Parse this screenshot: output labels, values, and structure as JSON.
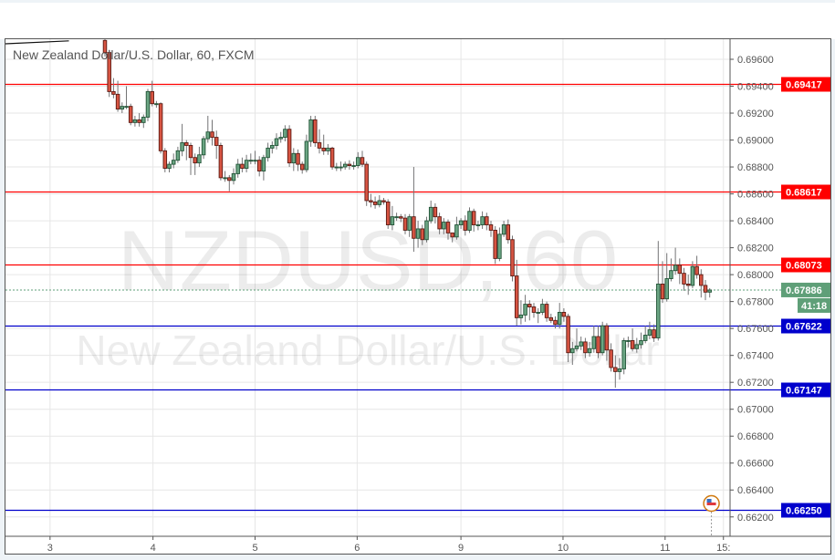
{
  "chart_data": {
    "type": "candlestick",
    "title": "New Zealand Dollar/U.S. Dollar, 60, FXCM",
    "watermark": {
      "symbol_line": "NZDUSD, 60",
      "name_line": "New Zealand Dollar/U.S. Dollar"
    },
    "timeframe_minutes": 60,
    "ylim": [
      0.6615,
      0.6972
    ],
    "y_ticks": [
      "0.69600",
      "0.69400",
      "0.69200",
      "0.69000",
      "0.68800",
      "0.68600",
      "0.68400",
      "0.68200",
      "0.68000",
      "0.67800",
      "0.67600",
      "0.67400",
      "0.67200",
      "0.67000",
      "0.66800",
      "0.66600",
      "0.66400",
      "0.66200"
    ],
    "x_ticks": [
      {
        "label": "3",
        "bar": -12.8
      },
      {
        "label": "4",
        "bar": 11.2
      },
      {
        "label": "5",
        "bar": 35
      },
      {
        "label": "6",
        "bar": 58.8
      },
      {
        "label": "9",
        "bar": 83
      },
      {
        "label": "10",
        "bar": 106.8
      },
      {
        "label": "11",
        "bar": 130.6
      },
      {
        "label": "15:",
        "bar": 144.2
      }
    ],
    "grid": true,
    "colors": {
      "up": "#6ba583",
      "up_border": "#225437",
      "down": "#d75442",
      "down_border": "#5b1a13",
      "wick": "#737375",
      "resistance": "#ff0000",
      "support": "#0000cc",
      "last_price": "#5f9f78"
    },
    "levels": [
      {
        "price": "0.69417",
        "kind": "resistance"
      },
      {
        "price": "0.68617",
        "kind": "resistance"
      },
      {
        "price": "0.68073",
        "kind": "resistance"
      },
      {
        "price": "0.67622",
        "kind": "support"
      },
      {
        "price": "0.67147",
        "kind": "support"
      },
      {
        "price": "0.66250",
        "kind": "support"
      }
    ],
    "last_price": {
      "price": "0.67886",
      "countdown": "41:18"
    },
    "trendline": {
      "from": {
        "bar": -21.6,
        "price": 0.697
      },
      "to": {
        "bar": -8.4,
        "price": 0.6974
      }
    },
    "events": [
      {
        "icon": "us-flag-icon",
        "bar": 141.4
      }
    ],
    "candles": [
      [
        0.6974,
        0.6977,
        0.6962,
        0.6965
      ],
      [
        0.6965,
        0.6967,
        0.6932,
        0.6936
      ],
      [
        0.6936,
        0.6946,
        0.6931,
        0.6934
      ],
      [
        0.6934,
        0.6944,
        0.6921,
        0.6923
      ],
      [
        0.6923,
        0.6928,
        0.692,
        0.6925
      ],
      [
        0.6925,
        0.694,
        0.6923,
        0.6925
      ],
      [
        0.6925,
        0.6927,
        0.6911,
        0.6913
      ],
      [
        0.6913,
        0.6918,
        0.691,
        0.6915
      ],
      [
        0.6915,
        0.692,
        0.691,
        0.6913
      ],
      [
        0.6913,
        0.6919,
        0.6909,
        0.6917
      ],
      [
        0.6917,
        0.6938,
        0.6914,
        0.6936
      ],
      [
        0.6936,
        0.6944,
        0.6925,
        0.6927
      ],
      [
        0.6927,
        0.6929,
        0.6924,
        0.6927
      ],
      [
        0.6927,
        0.6928,
        0.689,
        0.6892
      ],
      [
        0.6892,
        0.6894,
        0.6876,
        0.6879
      ],
      [
        0.6879,
        0.6884,
        0.6876,
        0.6882
      ],
      [
        0.6882,
        0.689,
        0.6879,
        0.6885
      ],
      [
        0.6885,
        0.6895,
        0.6883,
        0.6892
      ],
      [
        0.6892,
        0.6912,
        0.6888,
        0.6898
      ],
      [
        0.6898,
        0.69,
        0.6885,
        0.6896
      ],
      [
        0.6896,
        0.6898,
        0.6874,
        0.6887
      ],
      [
        0.6887,
        0.689,
        0.6874,
        0.6883
      ],
      [
        0.6883,
        0.6895,
        0.688,
        0.6889
      ],
      [
        0.6889,
        0.6903,
        0.6886,
        0.6901
      ],
      [
        0.6901,
        0.6918,
        0.6898,
        0.6906
      ],
      [
        0.6906,
        0.6915,
        0.6896,
        0.6902
      ],
      [
        0.6902,
        0.6907,
        0.6886,
        0.6896
      ],
      [
        0.6896,
        0.6898,
        0.687,
        0.6872
      ],
      [
        0.6872,
        0.6877,
        0.6869,
        0.6872
      ],
      [
        0.6872,
        0.6874,
        0.6862,
        0.687
      ],
      [
        0.687,
        0.6879,
        0.6867,
        0.6875
      ],
      [
        0.6875,
        0.6886,
        0.6872,
        0.6882
      ],
      [
        0.6882,
        0.6887,
        0.6876,
        0.6879
      ],
      [
        0.6879,
        0.6889,
        0.6876,
        0.6885
      ],
      [
        0.6885,
        0.689,
        0.6882,
        0.6885
      ],
      [
        0.6885,
        0.6892,
        0.6882,
        0.6885
      ],
      [
        0.6885,
        0.6888,
        0.6873,
        0.6877
      ],
      [
        0.6877,
        0.6889,
        0.687,
        0.6887
      ],
      [
        0.6887,
        0.6898,
        0.6884,
        0.6894
      ],
      [
        0.6894,
        0.6899,
        0.689,
        0.6896
      ],
      [
        0.6896,
        0.6905,
        0.6893,
        0.6901
      ],
      [
        0.6901,
        0.6906,
        0.6898,
        0.6902
      ],
      [
        0.6902,
        0.6911,
        0.6899,
        0.6908
      ],
      [
        0.6908,
        0.6911,
        0.688,
        0.6883
      ],
      [
        0.6883,
        0.6894,
        0.6877,
        0.689
      ],
      [
        0.689,
        0.6893,
        0.6877,
        0.6882
      ],
      [
        0.6882,
        0.6884,
        0.6875,
        0.6878
      ],
      [
        0.6878,
        0.6904,
        0.6876,
        0.6899
      ],
      [
        0.6899,
        0.6918,
        0.6895,
        0.6915
      ],
      [
        0.6915,
        0.6918,
        0.6895,
        0.6898
      ],
      [
        0.6898,
        0.6908,
        0.689,
        0.6894
      ],
      [
        0.6894,
        0.6904,
        0.6889,
        0.6892
      ],
      [
        0.6892,
        0.6897,
        0.6889,
        0.6894
      ],
      [
        0.6894,
        0.6895,
        0.6878,
        0.688
      ],
      [
        0.688,
        0.6883,
        0.6877,
        0.688
      ],
      [
        0.688,
        0.6884,
        0.6877,
        0.688
      ],
      [
        0.688,
        0.6884,
        0.6878,
        0.6882
      ],
      [
        0.6882,
        0.6885,
        0.6878,
        0.6881
      ],
      [
        0.6881,
        0.6884,
        0.6878,
        0.6881
      ],
      [
        0.6881,
        0.6891,
        0.6879,
        0.6887
      ],
      [
        0.6887,
        0.6892,
        0.688,
        0.6882
      ],
      [
        0.6882,
        0.6884,
        0.6851,
        0.6855
      ],
      [
        0.6855,
        0.686,
        0.685,
        0.6854
      ],
      [
        0.6854,
        0.6858,
        0.6849,
        0.6852
      ],
      [
        0.6852,
        0.6859,
        0.685,
        0.6855
      ],
      [
        0.6855,
        0.6857,
        0.6852,
        0.6854
      ],
      [
        0.6854,
        0.6856,
        0.6834,
        0.6837
      ],
      [
        0.6837,
        0.6851,
        0.6833,
        0.6843
      ],
      [
        0.6843,
        0.6846,
        0.684,
        0.6843
      ],
      [
        0.6843,
        0.6845,
        0.6839,
        0.6842
      ],
      [
        0.6842,
        0.6845,
        0.683,
        0.6833
      ],
      [
        0.6833,
        0.6845,
        0.6828,
        0.6843
      ],
      [
        0.6843,
        0.688,
        0.6817,
        0.6827
      ],
      [
        0.6827,
        0.684,
        0.682,
        0.6834
      ],
      [
        0.6834,
        0.6837,
        0.6822,
        0.6826
      ],
      [
        0.6826,
        0.6843,
        0.6824,
        0.684
      ],
      [
        0.684,
        0.6855,
        0.6838,
        0.685
      ],
      [
        0.685,
        0.6853,
        0.6838,
        0.6843
      ],
      [
        0.6843,
        0.6846,
        0.683,
        0.6834
      ],
      [
        0.6834,
        0.6842,
        0.683,
        0.6839
      ],
      [
        0.6839,
        0.6841,
        0.6826,
        0.6831
      ],
      [
        0.6831,
        0.6831,
        0.6824,
        0.6828
      ],
      [
        0.6828,
        0.6843,
        0.6826,
        0.6837
      ],
      [
        0.6837,
        0.6842,
        0.6834,
        0.684
      ],
      [
        0.684,
        0.6844,
        0.6829,
        0.6833
      ],
      [
        0.6833,
        0.685,
        0.6831,
        0.6847
      ],
      [
        0.6847,
        0.6849,
        0.6832,
        0.6837
      ],
      [
        0.6837,
        0.684,
        0.6833,
        0.6837
      ],
      [
        0.6837,
        0.6847,
        0.6834,
        0.6843
      ],
      [
        0.6843,
        0.6846,
        0.6833,
        0.6837
      ],
      [
        0.6837,
        0.684,
        0.6828,
        0.6833
      ],
      [
        0.6833,
        0.6836,
        0.6808,
        0.6812
      ],
      [
        0.6812,
        0.6835,
        0.681,
        0.683
      ],
      [
        0.683,
        0.684,
        0.6828,
        0.6837
      ],
      [
        0.6837,
        0.6841,
        0.6823,
        0.6826
      ],
      [
        0.6826,
        0.6829,
        0.6795,
        0.6799
      ],
      [
        0.6799,
        0.6811,
        0.6762,
        0.6768
      ],
      [
        0.6768,
        0.6781,
        0.6763,
        0.677
      ],
      [
        0.677,
        0.6785,
        0.6765,
        0.6778
      ],
      [
        0.6778,
        0.6781,
        0.6766,
        0.6776
      ],
      [
        0.6776,
        0.6779,
        0.6768,
        0.6772
      ],
      [
        0.6772,
        0.6775,
        0.6764,
        0.6772
      ],
      [
        0.6772,
        0.6782,
        0.677,
        0.6778
      ],
      [
        0.6778,
        0.678,
        0.6765,
        0.6768
      ],
      [
        0.6768,
        0.6771,
        0.6764,
        0.6766
      ],
      [
        0.6766,
        0.6769,
        0.676,
        0.6763
      ],
      [
        0.6763,
        0.6779,
        0.676,
        0.6772
      ],
      [
        0.6772,
        0.6775,
        0.6765,
        0.6769
      ],
      [
        0.6769,
        0.6771,
        0.6735,
        0.6742
      ],
      [
        0.6742,
        0.675,
        0.6733,
        0.6745
      ],
      [
        0.6745,
        0.676,
        0.6743,
        0.6747
      ],
      [
        0.6747,
        0.6754,
        0.6744,
        0.675
      ],
      [
        0.675,
        0.6753,
        0.6738,
        0.6742
      ],
      [
        0.6742,
        0.675,
        0.6739,
        0.6745
      ],
      [
        0.6745,
        0.6762,
        0.6742,
        0.6754
      ],
      [
        0.6754,
        0.6762,
        0.6738,
        0.6742
      ],
      [
        0.6742,
        0.6765,
        0.674,
        0.6762
      ],
      [
        0.6762,
        0.6764,
        0.6736,
        0.6744
      ],
      [
        0.6744,
        0.6749,
        0.6728,
        0.6731
      ],
      [
        0.6731,
        0.674,
        0.6716,
        0.6728
      ],
      [
        0.6728,
        0.6738,
        0.6722,
        0.673
      ],
      [
        0.673,
        0.6753,
        0.6726,
        0.6751
      ],
      [
        0.6751,
        0.6754,
        0.6746,
        0.6751
      ],
      [
        0.6751,
        0.676,
        0.6743,
        0.6745
      ],
      [
        0.6745,
        0.6753,
        0.6742,
        0.6748
      ],
      [
        0.6748,
        0.6757,
        0.6745,
        0.6751
      ],
      [
        0.6751,
        0.6762,
        0.6749,
        0.6755
      ],
      [
        0.6755,
        0.6765,
        0.6752,
        0.6759
      ],
      [
        0.6759,
        0.6763,
        0.675,
        0.6753
      ],
      [
        0.6753,
        0.6825,
        0.6751,
        0.6793
      ],
      [
        0.6793,
        0.681,
        0.6779,
        0.6782
      ],
      [
        0.6782,
        0.6816,
        0.678,
        0.6797
      ],
      [
        0.6797,
        0.6812,
        0.6795,
        0.6803
      ],
      [
        0.6803,
        0.682,
        0.68,
        0.6807
      ],
      [
        0.6807,
        0.6812,
        0.6793,
        0.6801
      ],
      [
        0.6801,
        0.6805,
        0.6788,
        0.6793
      ],
      [
        0.6793,
        0.68,
        0.6785,
        0.6792
      ],
      [
        0.6792,
        0.681,
        0.679,
        0.6806
      ],
      [
        0.6806,
        0.6814,
        0.6797,
        0.68
      ],
      [
        0.68,
        0.6804,
        0.6783,
        0.6792
      ],
      [
        0.6792,
        0.6796,
        0.6781,
        0.6787
      ],
      [
        0.6787,
        0.679,
        0.6783,
        0.67886
      ]
    ]
  }
}
